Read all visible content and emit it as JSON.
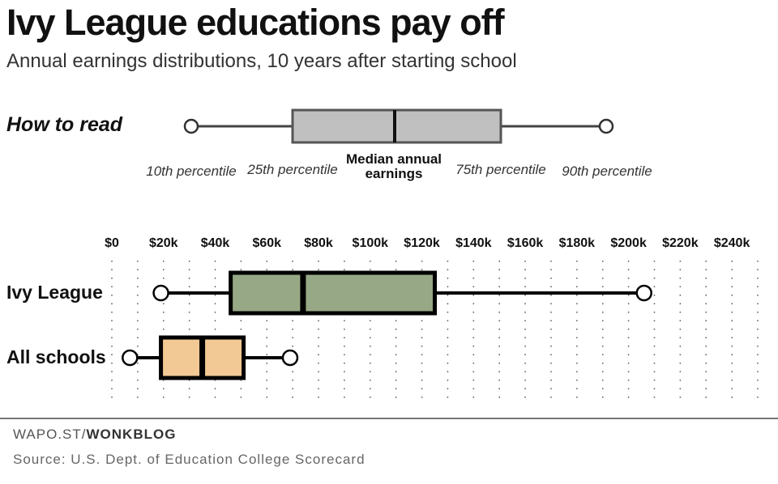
{
  "title": "Ivy League educations pay off",
  "subtitle": "Annual earnings distributions, 10 years after starting school",
  "how_to_read": {
    "label": "How to read",
    "p10": "10th percentile",
    "p25": "25th percentile",
    "median": "Median annual earnings",
    "p75": "75th percentile",
    "p90": "90th percentile",
    "box_color": "#c0c0c0"
  },
  "credit_prefix": "WAPO.ST/",
  "credit_bold": "WONKBLOG",
  "source": "Source: U.S. Dept. of Education College Scorecard",
  "chart_data": {
    "type": "boxplot",
    "orientation": "horizontal",
    "xlim": [
      0,
      250
    ],
    "x_unit": "thousands of dollars",
    "x_ticks": [
      0,
      20,
      40,
      60,
      80,
      100,
      120,
      140,
      160,
      180,
      200,
      220,
      240
    ],
    "x_tick_labels": [
      "$0",
      "$20k",
      "$40k",
      "$60k",
      "$80k",
      "$100k",
      "$120k",
      "$140k",
      "$160k",
      "$180k",
      "$200k",
      "$220k",
      "$240k"
    ],
    "grid": "dotted vertical every $10k",
    "series": [
      {
        "name": "Ivy League",
        "p10": 19,
        "p25": 46,
        "median": 74,
        "p75": 125,
        "p90": 206,
        "color": "#97a886"
      },
      {
        "name": "All schools",
        "p10": 7,
        "p25": 19,
        "median": 35,
        "p75": 51,
        "p90": 69,
        "color": "#f2c894"
      }
    ]
  }
}
